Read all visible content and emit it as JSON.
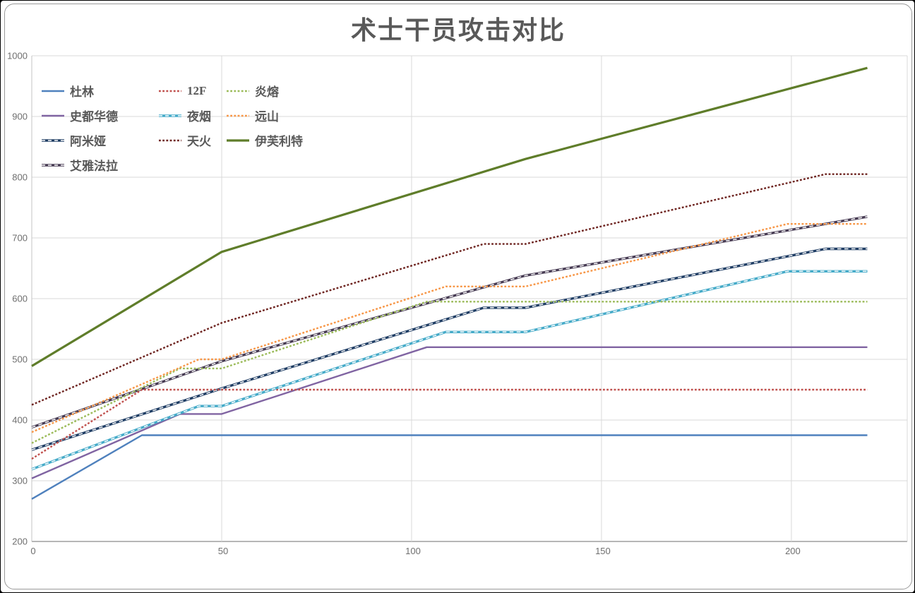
{
  "title": "术士干员攻击对比",
  "colors": {
    "title_text": "#595959",
    "legend_text": "#595959",
    "tick_text": "#6e6e6e",
    "gridline": "#d9d9d9",
    "axis_line": "#9d9d9d",
    "frame_border": "#9a9a9a",
    "background": "#ffffff"
  },
  "chart_data": {
    "type": "line",
    "title": "术士干员攻击对比",
    "xlabel": "",
    "ylabel": "",
    "xlim": [
      0,
      230.5
    ],
    "ylim": [
      200,
      1000
    ],
    "x_ticks": [
      0,
      50,
      100,
      150,
      200
    ],
    "y_ticks": [
      200,
      300,
      400,
      500,
      600,
      700,
      800,
      900,
      1000
    ],
    "grid": true,
    "legend_position": "inside-top-left",
    "legend_columns": [
      [
        "杜林",
        "史都华德",
        "阿米娅",
        "艾雅法拉"
      ],
      [
        "12F",
        "夜烟",
        "天火"
      ],
      [
        "炎熔",
        "远山",
        "伊芙利特"
      ]
    ],
    "series": [
      {
        "name": "杜林",
        "color": "#4f81bd",
        "line_style": "solid",
        "width": 2.4,
        "points": [
          [
            0,
            270
          ],
          [
            29,
            375
          ],
          [
            220,
            375
          ]
        ]
      },
      {
        "name": "史都华德",
        "color": "#8064a2",
        "line_style": "solid",
        "width": 2.4,
        "points": [
          [
            0,
            304
          ],
          [
            39,
            410
          ],
          [
            50,
            410
          ],
          [
            104,
            520
          ],
          [
            220,
            520
          ]
        ]
      },
      {
        "name": "阿米娅",
        "color": "#1f3d64",
        "line_style": "dash-white",
        "width": 3.4,
        "points": [
          [
            0,
            351
          ],
          [
            50,
            452
          ],
          [
            119,
            585
          ],
          [
            130,
            585
          ],
          [
            209,
            682
          ],
          [
            220,
            682
          ]
        ]
      },
      {
        "name": "艾雅法拉",
        "color": "#463a52",
        "line_style": "dash-white",
        "width": 3.4,
        "points": [
          [
            0,
            388
          ],
          [
            50,
            497
          ],
          [
            130,
            638
          ],
          [
            220,
            735
          ]
        ]
      },
      {
        "name": "12F",
        "color": "#c0504d",
        "line_style": "dotted",
        "width": 2.4,
        "points": [
          [
            0,
            336
          ],
          [
            29,
            450
          ],
          [
            220,
            450
          ]
        ]
      },
      {
        "name": "夜烟",
        "color": "#44aac8",
        "line_style": "dash-white",
        "width": 3.4,
        "points": [
          [
            0,
            319
          ],
          [
            44,
            423
          ],
          [
            50,
            423
          ],
          [
            109,
            545
          ],
          [
            130,
            545
          ],
          [
            199,
            645
          ],
          [
            220,
            645
          ]
        ]
      },
      {
        "name": "天火",
        "color": "#6e2420",
        "line_style": "dotted",
        "width": 2.4,
        "points": [
          [
            0,
            425
          ],
          [
            50,
            560
          ],
          [
            119,
            690
          ],
          [
            130,
            690
          ],
          [
            209,
            805
          ],
          [
            220,
            805
          ]
        ]
      },
      {
        "name": "炎熔",
        "color": "#9bbb59",
        "line_style": "dotted",
        "width": 2.4,
        "points": [
          [
            0,
            362
          ],
          [
            39,
            485
          ],
          [
            50,
            485
          ],
          [
            104,
            595
          ],
          [
            220,
            595
          ]
        ]
      },
      {
        "name": "远山",
        "color": "#f79646",
        "line_style": "dotted",
        "width": 2.4,
        "points": [
          [
            0,
            380
          ],
          [
            44,
            500
          ],
          [
            50,
            500
          ],
          [
            109,
            620
          ],
          [
            130,
            620
          ],
          [
            199,
            723
          ],
          [
            220,
            723
          ]
        ]
      },
      {
        "name": "伊芙利特",
        "color": "#5f7d2a",
        "line_style": "solid",
        "width": 3.2,
        "points": [
          [
            0,
            489
          ],
          [
            50,
            677
          ],
          [
            130,
            830
          ],
          [
            220,
            980
          ]
        ]
      }
    ]
  }
}
